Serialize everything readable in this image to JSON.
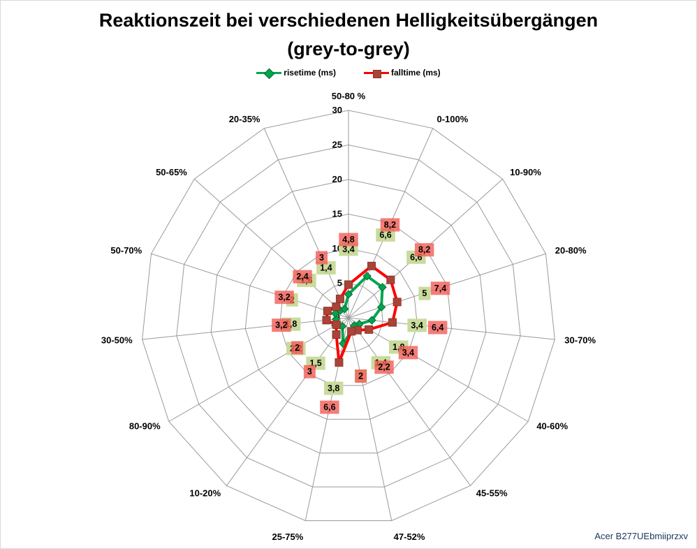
{
  "title": {
    "line1": "Reaktionszeit bei verschiedenen Helligkeitsübergängen",
    "line2": "(grey-to-grey)"
  },
  "legend": [
    {
      "label": "risetime (ms)",
      "marker": "diamond",
      "color": "#00A54F"
    },
    {
      "label": "falltime (ms)",
      "marker": "square",
      "color": "#FE0000"
    }
  ],
  "footer": "Acer B277UEbmiiprzxv",
  "colors": {
    "grid": "#9a9a9a",
    "text": "#000000",
    "risetime_line": "#00A54F",
    "risetime_marker": "#00A54F",
    "risetime_marker_border": "#0B6B2E",
    "falltime_line": "#FE0000",
    "falltime_marker": "#AA4338",
    "falltime_marker_border": "#8C352C",
    "risetime_label_bg": "rgba(201,219,156,1)",
    "falltime_label_bg": "rgba(242,92,86,0.8)",
    "footer_text": "#17375D"
  },
  "chart_data": {
    "type": "radar",
    "title": "Reaktionszeit bei verschiedenen Helligkeitsübergängen (grey-to-grey)",
    "axis": {
      "min": 0,
      "max": 30,
      "ticks": [
        0,
        5,
        10,
        15,
        20,
        25,
        30
      ],
      "tick_labels": [
        "0",
        "5",
        "10",
        "15",
        "20",
        "25",
        "30"
      ]
    },
    "grid": true,
    "legend_position": "top",
    "categories": [
      "50-80 %",
      "0-100%",
      "10-90%",
      "20-80%",
      "30-70%",
      "40-60%",
      "45-55%",
      "47-52%",
      "25-75%",
      "10-20%",
      "80-90%",
      "30-50%",
      "50-70%",
      "50-65%",
      "20-35%"
    ],
    "series": [
      {
        "name": "risetime (ms)",
        "values": [
          3.4,
          6.6,
          6.6,
          5,
          3.4,
          1.8,
          1.4,
          2,
          3.8,
          1.5,
          2.2,
          1.8,
          2,
          1.6,
          1.4
        ],
        "labels": [
          "3,4",
          "6,6",
          "6,6",
          "5",
          "3,4",
          "1,8",
          "1,4",
          "2",
          "3,8",
          "1,5",
          "2,2",
          "1,8",
          "2",
          "1,6",
          "1,4"
        ],
        "marker": "diamond"
      },
      {
        "name": "falltime (ms)",
        "values": [
          4.8,
          8.2,
          8.2,
          7.4,
          6.4,
          3.4,
          2.2,
          2,
          6.6,
          3,
          2,
          3.2,
          3.2,
          2.4,
          3
        ],
        "labels": [
          "4,8",
          "8,2",
          "8,2",
          "7,4",
          "6,4",
          "3,4",
          "2,2",
          "2",
          "6,6",
          "3",
          "2",
          "3,2",
          "3,2",
          "2,4",
          "3"
        ],
        "marker": "square"
      }
    ]
  }
}
